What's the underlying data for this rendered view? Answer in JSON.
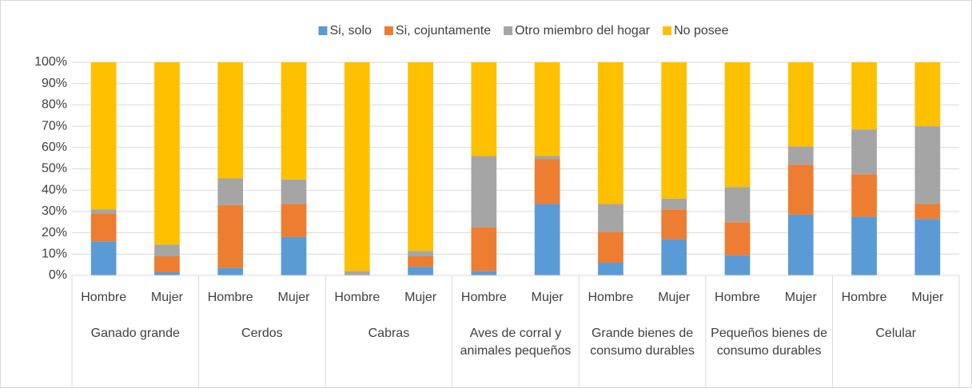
{
  "chart_data": {
    "type": "stacked_bar",
    "categories": [
      "Hombre",
      "Mujer",
      "Hombre",
      "Mujer",
      "Hombre",
      "Mujer",
      "Hombre",
      "Mujer",
      "Hombre",
      "Mujer",
      "Hombre",
      "Mujer",
      "Hombre",
      "Mujer"
    ],
    "groups": [
      "Ganado grande",
      "Cerdos",
      "Cabras",
      "Aves de corral y animales pequeños",
      "Grande bienes de consumo durables",
      "Pequeños bienes de consumo durables",
      "Celular"
    ],
    "series": [
      {
        "name": "Si, solo",
        "color": "#5b9bd5",
        "values": [
          16,
          1.5,
          3.5,
          18,
          0,
          4,
          2,
          33.5,
          6,
          17,
          9.5,
          28.5,
          27.5,
          26.5
        ]
      },
      {
        "name": "Si, cojuntamente",
        "color": "#ed7d31",
        "values": [
          13,
          7.5,
          29.5,
          15.5,
          0,
          5,
          20.5,
          21,
          14.5,
          14,
          15.5,
          23.5,
          20,
          7
        ]
      },
      {
        "name": "Otro miembro del hogar",
        "color": "#a5a5a5",
        "values": [
          2,
          5.5,
          12.5,
          11.5,
          2,
          2.5,
          33.5,
          1.5,
          13,
          5,
          16.5,
          8.5,
          21,
          36.5
        ]
      },
      {
        "name": "No posee",
        "color": "#ffc000",
        "values": [
          69,
          85.5,
          54.5,
          55,
          98,
          88.5,
          44,
          44,
          66.5,
          64,
          58.5,
          39.5,
          31.5,
          30
        ]
      }
    ],
    "ylim": [
      0,
      100
    ],
    "yticks": [
      {
        "value": 0,
        "label": "0%"
      },
      {
        "value": 10,
        "label": "10%"
      },
      {
        "value": 20,
        "label": "20%"
      },
      {
        "value": 30,
        "label": "30%"
      },
      {
        "value": 40,
        "label": "40%"
      },
      {
        "value": 50,
        "label": "50%"
      },
      {
        "value": 60,
        "label": "60%"
      },
      {
        "value": 70,
        "label": "70%"
      },
      {
        "value": 80,
        "label": "80%"
      },
      {
        "value": 90,
        "label": "90%"
      },
      {
        "value": 100,
        "label": "100%"
      }
    ],
    "grid": true,
    "legend": "top"
  }
}
